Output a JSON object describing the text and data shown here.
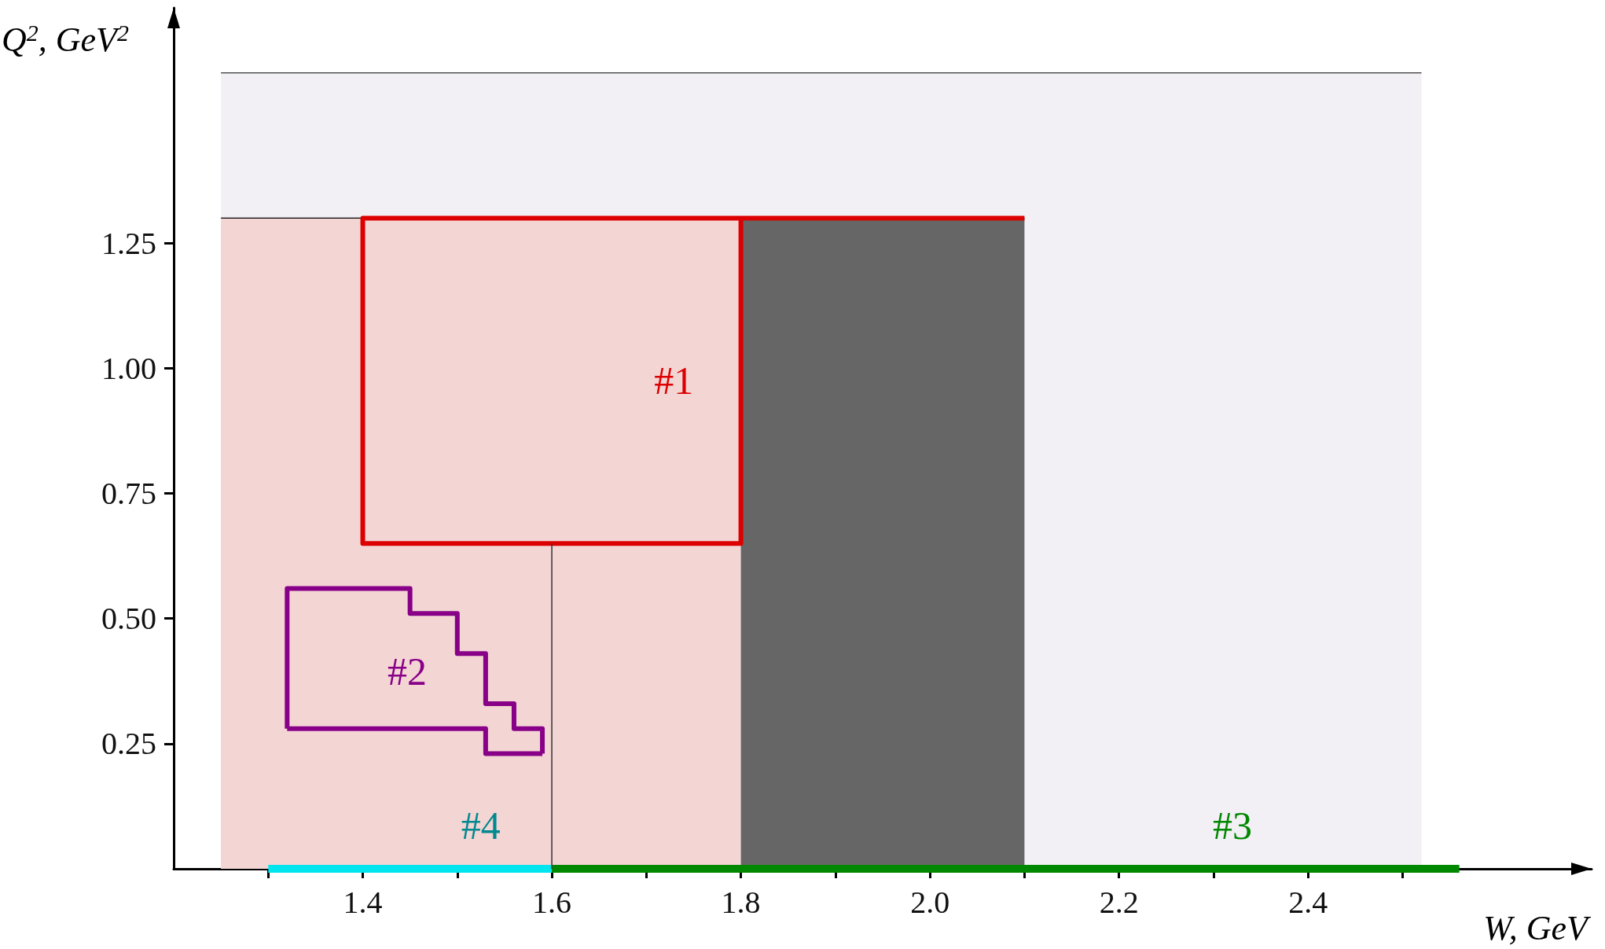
{
  "chart_data": {
    "type": "line",
    "xlabel": "W, GeV",
    "ylabel": "Q$^{2}$, GeV$^{2}$",
    "xlim": [
      1.2,
      2.7
    ],
    "ylim": [
      0,
      1.72
    ],
    "xticks": [
      {
        "value": 1.3,
        "label": null
      },
      {
        "value": 1.4,
        "label": "1.4"
      },
      {
        "value": 1.5,
        "label": null
      },
      {
        "value": 1.6,
        "label": "1.6"
      },
      {
        "value": 1.7,
        "label": null
      },
      {
        "value": 1.8,
        "label": "1.8"
      },
      {
        "value": 1.9,
        "label": null
      },
      {
        "value": 2.0,
        "label": "2.0"
      },
      {
        "value": 2.1,
        "label": null
      },
      {
        "value": 2.2,
        "label": "2.2"
      },
      {
        "value": 2.3,
        "label": null
      },
      {
        "value": 2.4,
        "label": "2.4"
      },
      {
        "value": 2.5,
        "label": null
      }
    ],
    "yticks": [
      {
        "value": 0.25,
        "label": "0.25"
      },
      {
        "value": 0.5,
        "label": "0.50"
      },
      {
        "value": 0.75,
        "label": "0.75"
      },
      {
        "value": 1.0,
        "label": "1.00"
      },
      {
        "value": 1.25,
        "label": "1.25"
      }
    ],
    "grid": false,
    "legend": false,
    "marker": "none",
    "series": [
      {
        "name": "#1",
        "color": "#dd0000",
        "x": [
          2.1,
          1.4,
          1.4,
          1.8,
          1.8
        ],
        "values": [
          1.3,
          1.3,
          0.65,
          0.65,
          1.3
        ]
      },
      {
        "name": "#2",
        "color": "#880088",
        "x": [
          1.32,
          1.32,
          1.45,
          1.45,
          1.5,
          1.5,
          1.53,
          1.53,
          1.56,
          1.56,
          1.59,
          1.59
        ],
        "values": [
          0.28,
          0.56,
          0.56,
          0.51,
          0.51,
          0.43,
          0.43,
          0.33,
          0.33,
          0.28,
          0.28,
          0.23
        ]
      },
      {
        "color": "#880088",
        "x": [
          1.32,
          1.53,
          1.53,
          1.59
        ],
        "values": [
          0.28,
          0.28,
          0.23,
          0.23
        ]
      },
      {
        "name": "#3",
        "color": "#008800",
        "x": [
          1.6,
          2.56
        ],
        "values": [
          0,
          0
        ]
      },
      {
        "name": "#4",
        "color": "#00e5ee",
        "x": [
          1.3,
          1.6
        ],
        "values": [
          0,
          0
        ]
      },
      {
        "type": "area",
        "color": "#f3f0f5",
        "x": [
          1.25,
          2.52
        ],
        "values": [
          1.59,
          1.59
        ]
      },
      {
        "type": "area",
        "color": "#f3d5d4",
        "x": [
          1.25,
          1.8
        ],
        "values": [
          1.3,
          1.3
        ]
      },
      {
        "type": "area",
        "color": "#666666",
        "x": [
          1.8,
          2.1
        ],
        "values": [
          1.3,
          1.3
        ]
      },
      {
        "color": "#333333",
        "x": [
          1.6,
          1.6
        ],
        "values": [
          0,
          0.65
        ]
      }
    ]
  }
}
